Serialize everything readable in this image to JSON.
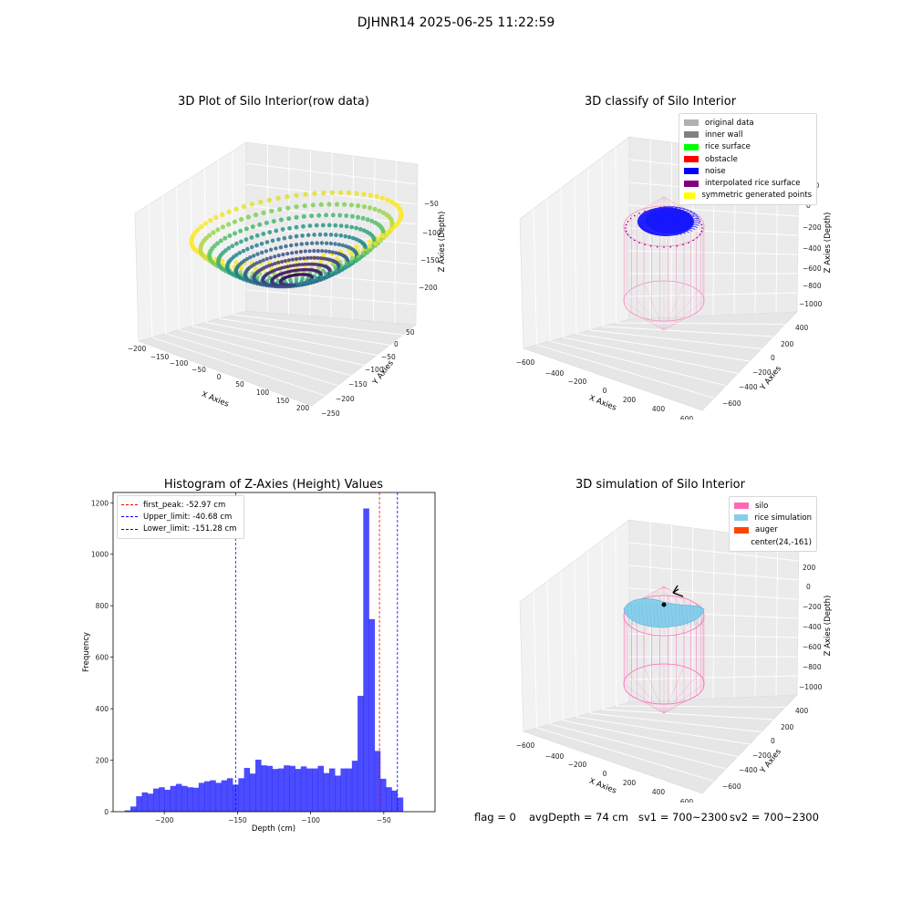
{
  "suptitle": "DJHNR14 2025-06-25 11:22:59",
  "panel1": {
    "title": "3D Plot of Silo Interior(row data)",
    "xlabel": "X Axies",
    "ylabel": "Y Axies",
    "zlabel": "Z Axies (Depth)",
    "xticks": [
      "−200",
      "−150",
      "−100",
      "−50",
      "0",
      "50",
      "100",
      "150",
      "200"
    ],
    "yticks": [
      "50",
      "0",
      "−50",
      "−100",
      "−150",
      "−200",
      "−250"
    ],
    "zticks": [
      "−50",
      "−100",
      "−150",
      "−200"
    ]
  },
  "panel2": {
    "title": "3D classify of Silo Interior",
    "xlabel": "X Axies",
    "ylabel": "Y Axies",
    "zlabel": "Z Axies (Depth)",
    "xticks": [
      "−600",
      "−400",
      "−200",
      "0",
      "200",
      "400",
      "600"
    ],
    "yticks": [
      "400",
      "200",
      "0",
      "−200",
      "−400",
      "−600"
    ],
    "zticks": [
      "200",
      "0",
      "−200",
      "−400",
      "−600",
      "−800",
      "−1000"
    ],
    "legend": [
      {
        "label": "original data",
        "color": "#b0b0b0"
      },
      {
        "label": "inner wall",
        "color": "#808080"
      },
      {
        "label": "rice surface",
        "color": "#00ff00"
      },
      {
        "label": "obstacle",
        "color": "#ff0000"
      },
      {
        "label": "noise",
        "color": "#0000ff"
      },
      {
        "label": "interpolated rice surface",
        "color": "#800080"
      },
      {
        "label": "symmetric generated points",
        "color": "#ffff00"
      }
    ]
  },
  "panel4": {
    "title": "3D simulation of Silo Interior",
    "xlabel": "X Axies",
    "ylabel": "Y Axies",
    "zlabel": "Z Axies (Depth)",
    "xticks": [
      "−600",
      "−400",
      "−200",
      "0",
      "200",
      "400",
      "600"
    ],
    "yticks": [
      "400",
      "200",
      "0",
      "−200",
      "−400",
      "−600"
    ],
    "zticks": [
      "200",
      "0",
      "−200",
      "−400",
      "−600",
      "−800",
      "−1000"
    ],
    "legend": [
      {
        "label": "silo",
        "color": "#ff69b4"
      },
      {
        "label": "rice simulation",
        "color": "#87ceeb"
      },
      {
        "label": "auger",
        "color": "#ff4500"
      },
      {
        "label": "center(24,-161)",
        "color": ""
      }
    ]
  },
  "footer": {
    "flag": "flag = 0",
    "avg_depth": "avgDepth = 74 cm",
    "sv1": "sv1 = 700~2300",
    "sv2": "sv2 = 700~2300"
  },
  "chart_data": [
    {
      "type": "scatter",
      "title": "3D Plot of Silo Interior(row data)",
      "xlabel": "X Axies",
      "ylabel": "Y Axies",
      "zlabel": "Z Axies (Depth)",
      "xlim": [
        -200,
        200
      ],
      "ylim": [
        -250,
        75
      ],
      "zlim": [
        -225,
        -25
      ],
      "colormap": "viridis"
    },
    {
      "type": "scatter",
      "title": "3D classify of Silo Interior",
      "xlabel": "X Axies",
      "ylabel": "Y Axies",
      "zlabel": "Z Axies (Depth)",
      "xlim": [
        -600,
        600
      ],
      "ylim": [
        -600,
        400
      ],
      "zlim": [
        -1000,
        200
      ],
      "legend_position": "top-right",
      "series": [
        {
          "name": "original data",
          "color": "#b0b0b0"
        },
        {
          "name": "inner wall",
          "color": "#808080"
        },
        {
          "name": "rice surface",
          "color": "#00ff00"
        },
        {
          "name": "obstacle",
          "color": "#ff0000"
        },
        {
          "name": "noise",
          "color": "#0000ff"
        },
        {
          "name": "interpolated rice surface",
          "color": "#800080"
        },
        {
          "name": "symmetric generated points",
          "color": "#ffff00"
        }
      ]
    },
    {
      "type": "bar",
      "title": "Histogram of Z-Axies (Height) Values",
      "xlabel": "Depth (cm)",
      "ylabel": "Frequency",
      "xlim": [
        -235,
        -15
      ],
      "ylim": [
        0,
        1240
      ],
      "xticks": [
        -200,
        -150,
        -100,
        -50
      ],
      "yticks": [
        0,
        200,
        400,
        600,
        800,
        1000,
        1200
      ],
      "bar_color": "#0000ff",
      "bin_width": 3.88,
      "bin_start": -227.0,
      "values": [
        5,
        20,
        60,
        75,
        70,
        90,
        95,
        85,
        100,
        108,
        100,
        95,
        93,
        112,
        118,
        122,
        112,
        122,
        130,
        105,
        130,
        170,
        148,
        202,
        180,
        178,
        166,
        168,
        180,
        178,
        166,
        176,
        168,
        168,
        178,
        150,
        168,
        140,
        168,
        168,
        198,
        450,
        1178,
        748,
        236,
        128,
        95,
        82,
        55
      ],
      "lines": [
        {
          "name": "first_peak: -52.97 cm",
          "x": -52.97,
          "color": "#ff0000"
        },
        {
          "name": "Upper_limit: -40.68 cm",
          "x": -40.68,
          "color": "#0000ff"
        },
        {
          "name": "Lower_limit: -151.28 cm",
          "x": -151.28,
          "color": "#0000ff"
        }
      ],
      "legend_position": "top-left"
    },
    {
      "type": "scatter",
      "title": "3D simulation of Silo Interior",
      "xlabel": "X Axies",
      "ylabel": "Y Axies",
      "zlabel": "Z Axies (Depth)",
      "xlim": [
        -600,
        600
      ],
      "ylim": [
        -600,
        400
      ],
      "zlim": [
        -1000,
        200
      ],
      "legend_position": "top-right",
      "series": [
        {
          "name": "silo",
          "color": "#ff69b4"
        },
        {
          "name": "rice simulation",
          "color": "#87ceeb"
        },
        {
          "name": "auger",
          "color": "#ff4500"
        },
        {
          "name": "center(24,-161)",
          "color": ""
        }
      ]
    }
  ]
}
